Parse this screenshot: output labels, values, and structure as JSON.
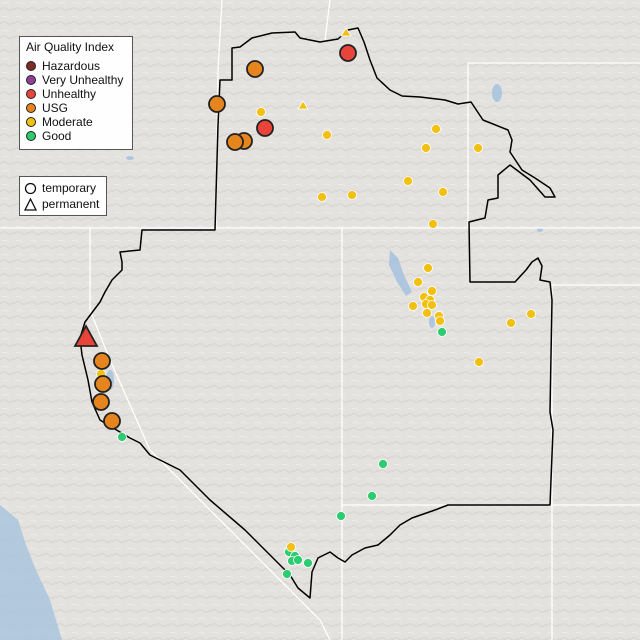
{
  "legend": {
    "title": "Air Quality Index",
    "items": [
      {
        "label": "Hazardous",
        "color": "#7e2a28"
      },
      {
        "label": "Very Unhealthy",
        "color": "#8f3f97"
      },
      {
        "label": "Unhealthy",
        "color": "#e8443a"
      },
      {
        "label": "USG",
        "color": "#e6841d"
      },
      {
        "label": "Moderate",
        "color": "#f2c00f"
      },
      {
        "label": "Good",
        "color": "#2ecc71"
      }
    ]
  },
  "monitor_legend": {
    "temporary_label": "temporary",
    "permanent_label": "permanent"
  },
  "colors": {
    "map_background": "#e4e2df",
    "state_lines": "#ffffff",
    "region_outline": "#000000",
    "water": "#a9c4de"
  },
  "icons": {
    "temporary": "circle-icon",
    "permanent": "triangle-icon"
  }
}
